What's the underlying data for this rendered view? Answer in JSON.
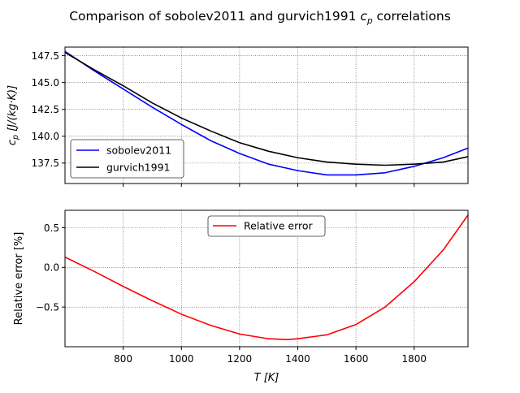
{
  "chart_data": [
    {
      "type": "line",
      "title": "Comparison of sobolev2011 and gurvich1991 c_p correlations",
      "title_parts": {
        "prefix": "Comparison of sobolev2011 and gurvich1991 ",
        "sym": "c",
        "sub": "p",
        "suffix": " correlations"
      },
      "xlabel": "",
      "ylabel_parts": {
        "sym": "c",
        "sub": "p",
        "unit": " [J/(kg·K)]"
      },
      "xlim": [
        600,
        1985
      ],
      "ylim": [
        135.6,
        148.3
      ],
      "yticks": [
        137.5,
        140.0,
        142.5,
        145.0,
        147.5
      ],
      "ytick_labels": [
        "137.5",
        "140.0",
        "142.5",
        "145.0",
        "147.5"
      ],
      "xticks": [
        800,
        1000,
        1200,
        1400,
        1600,
        1800
      ],
      "grid": true,
      "legend_position": "lower-left",
      "series": [
        {
          "name": "sobolev2011",
          "color": "#0000ff",
          "x": [
            600,
            700,
            800,
            900,
            1000,
            1100,
            1200,
            1300,
            1400,
            1500,
            1600,
            1700,
            1800,
            1900,
            1985
          ],
          "y": [
            147.9,
            146.1,
            144.4,
            142.7,
            141.1,
            139.6,
            138.4,
            137.4,
            136.8,
            136.4,
            136.4,
            136.6,
            137.2,
            138.0,
            138.9
          ]
        },
        {
          "name": "gurvich1991",
          "color": "#000000",
          "x": [
            600,
            700,
            800,
            900,
            1000,
            1100,
            1200,
            1300,
            1400,
            1500,
            1600,
            1700,
            1800,
            1900,
            1985
          ],
          "y": [
            147.8,
            146.2,
            144.7,
            143.1,
            141.7,
            140.5,
            139.4,
            138.6,
            138.0,
            137.6,
            137.4,
            137.3,
            137.4,
            137.6,
            138.1
          ]
        }
      ]
    },
    {
      "type": "line",
      "title": "",
      "xlabel_parts": {
        "sym": "T",
        "unit": " [K]"
      },
      "ylabel": "Relative error [%]",
      "xlim": [
        600,
        1985
      ],
      "ylim": [
        -1.0,
        0.72
      ],
      "yticks": [
        -0.5,
        0.0,
        0.5
      ],
      "ytick_labels": [
        "−0.5",
        "0.0",
        "0.5"
      ],
      "xticks": [
        800,
        1000,
        1200,
        1400,
        1600,
        1800
      ],
      "xtick_labels": [
        "800",
        "1000",
        "1200",
        "1400",
        "1600",
        "1800"
      ],
      "grid": true,
      "legend_position": "upper-center",
      "series": [
        {
          "name": "Relative error",
          "color": "#ff0000",
          "x": [
            600,
            700,
            800,
            900,
            1000,
            1100,
            1200,
            1300,
            1365,
            1400,
            1500,
            1600,
            1700,
            1800,
            1900,
            1985
          ],
          "y": [
            0.13,
            -0.05,
            -0.24,
            -0.42,
            -0.59,
            -0.73,
            -0.84,
            -0.9,
            -0.91,
            -0.9,
            -0.85,
            -0.72,
            -0.5,
            -0.18,
            0.22,
            0.66
          ]
        }
      ]
    }
  ]
}
